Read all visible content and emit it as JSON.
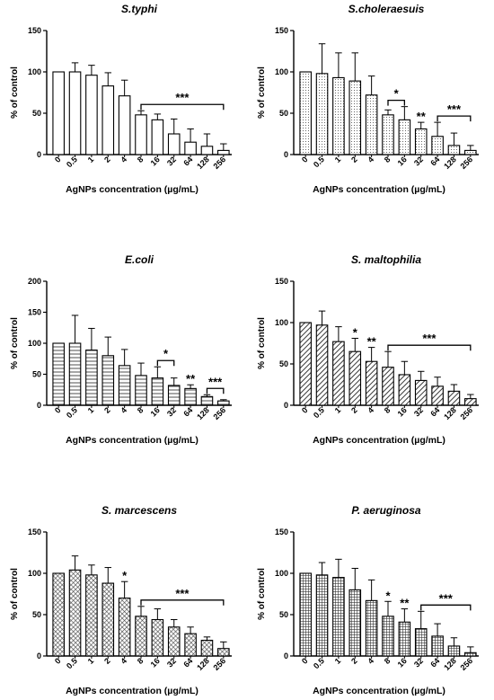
{
  "chart_data": [
    {
      "type": "bar",
      "title": "S.typhi",
      "xlabel": "AgNPs concentration (µg/mL)",
      "ylabel": "% of control",
      "categories": [
        "0",
        "0.5",
        "1",
        "2",
        "4",
        "8",
        "16",
        "32",
        "64",
        "128",
        "256"
      ],
      "values": [
        100,
        100,
        96,
        83,
        71,
        48,
        42,
        25,
        15,
        10,
        5
      ],
      "errors": [
        0,
        11,
        12,
        16,
        19,
        5,
        7,
        18,
        16,
        15,
        8
      ],
      "ylim": [
        0,
        150
      ],
      "yticks": [
        0,
        50,
        100,
        150
      ],
      "fill_pattern": "plain",
      "significance": [
        {
          "label": "***",
          "from": "8",
          "to": "256"
        }
      ]
    },
    {
      "type": "bar",
      "title": "S.choleraesuis",
      "xlabel": "AgNPs concentration (µg/mL)",
      "ylabel": "% of control",
      "categories": [
        "0",
        "0.5",
        "1",
        "2",
        "4",
        "8",
        "16",
        "32",
        "64",
        "128",
        "256"
      ],
      "values": [
        100,
        98,
        93,
        89,
        72,
        48,
        42,
        31,
        22,
        11,
        5
      ],
      "errors": [
        0,
        36,
        30,
        34,
        23,
        6,
        16,
        8,
        17,
        15,
        6
      ],
      "ylim": [
        0,
        150
      ],
      "yticks": [
        0,
        50,
        100,
        150
      ],
      "fill_pattern": "dots",
      "significance": [
        {
          "label": "*",
          "from": "8",
          "to": "16"
        },
        {
          "label": "**",
          "at": "32"
        },
        {
          "label": "***",
          "from": "64",
          "to": "256"
        }
      ]
    },
    {
      "type": "bar",
      "title": "E.coli",
      "xlabel": "AgNPs concentration (µg/mL)",
      "ylabel": "% of control",
      "categories": [
        "0",
        "0.5",
        "1",
        "2",
        "4",
        "8",
        "16",
        "32",
        "64",
        "128",
        "256"
      ],
      "values": [
        100,
        100,
        89,
        80,
        64,
        48,
        44,
        32,
        27,
        14,
        7
      ],
      "errors": [
        0,
        45,
        35,
        30,
        26,
        20,
        18,
        12,
        6,
        3,
        2
      ],
      "ylim": [
        0,
        200
      ],
      "yticks": [
        0,
        50,
        100,
        150,
        200
      ],
      "fill_pattern": "horizontal-lines",
      "significance": [
        {
          "label": "*",
          "from": "16",
          "to": "32"
        },
        {
          "label": "**",
          "at": "64"
        },
        {
          "label": "***",
          "from": "128",
          "to": "256"
        }
      ]
    },
    {
      "type": "bar",
      "title": "S. maltophilia",
      "xlabel": "AgNPs concentration (µg/mL)",
      "ylabel": "% of control",
      "categories": [
        "0",
        "0.5",
        "1",
        "2",
        "4",
        "8",
        "16",
        "32",
        "64",
        "128",
        "256"
      ],
      "values": [
        100,
        97,
        77,
        65,
        53,
        46,
        37,
        30,
        23,
        17,
        8
      ],
      "errors": [
        0,
        17,
        18,
        16,
        17,
        19,
        16,
        11,
        11,
        8,
        5
      ],
      "ylim": [
        0,
        150
      ],
      "yticks": [
        0,
        50,
        100,
        150
      ],
      "fill_pattern": "diagonal-lines",
      "significance": [
        {
          "label": "*",
          "at": "2"
        },
        {
          "label": "**",
          "at": "4"
        },
        {
          "label": "***",
          "from": "8",
          "to": "256"
        }
      ]
    },
    {
      "type": "bar",
      "title": "S. marcescens",
      "xlabel": "AgNPs concentration (µg/mL)",
      "ylabel": "% of control",
      "categories": [
        "0",
        "0.5",
        "1",
        "2",
        "4",
        "8",
        "16",
        "32",
        "64",
        "128",
        "256"
      ],
      "values": [
        100,
        104,
        98,
        88,
        70,
        48,
        44,
        35,
        27,
        19,
        9
      ],
      "errors": [
        0,
        17,
        12,
        19,
        20,
        12,
        13,
        9,
        8,
        4,
        8
      ],
      "ylim": [
        0,
        150
      ],
      "yticks": [
        0,
        50,
        100,
        150
      ],
      "fill_pattern": "crosshatch-diagonal",
      "significance": [
        {
          "label": "*",
          "at": "4"
        },
        {
          "label": "***",
          "from": "8",
          "to": "256"
        }
      ]
    },
    {
      "type": "bar",
      "title": "P. aeruginosa",
      "xlabel": "AgNPs concentration (µg/mL)",
      "ylabel": "% of control",
      "categories": [
        "0",
        "0.5",
        "1",
        "2",
        "4",
        "8",
        "16",
        "32",
        "64",
        "128",
        "256"
      ],
      "values": [
        100,
        98,
        95,
        80,
        67,
        48,
        41,
        33,
        24,
        12,
        4
      ],
      "errors": [
        0,
        15,
        22,
        26,
        25,
        18,
        16,
        21,
        15,
        10,
        7
      ],
      "ylim": [
        0,
        150
      ],
      "yticks": [
        0,
        50,
        100,
        150
      ],
      "fill_pattern": "grid",
      "significance": [
        {
          "label": "*",
          "at": "8"
        },
        {
          "label": "**",
          "at": "16"
        },
        {
          "label": "***",
          "from": "32",
          "to": "256"
        }
      ]
    }
  ]
}
